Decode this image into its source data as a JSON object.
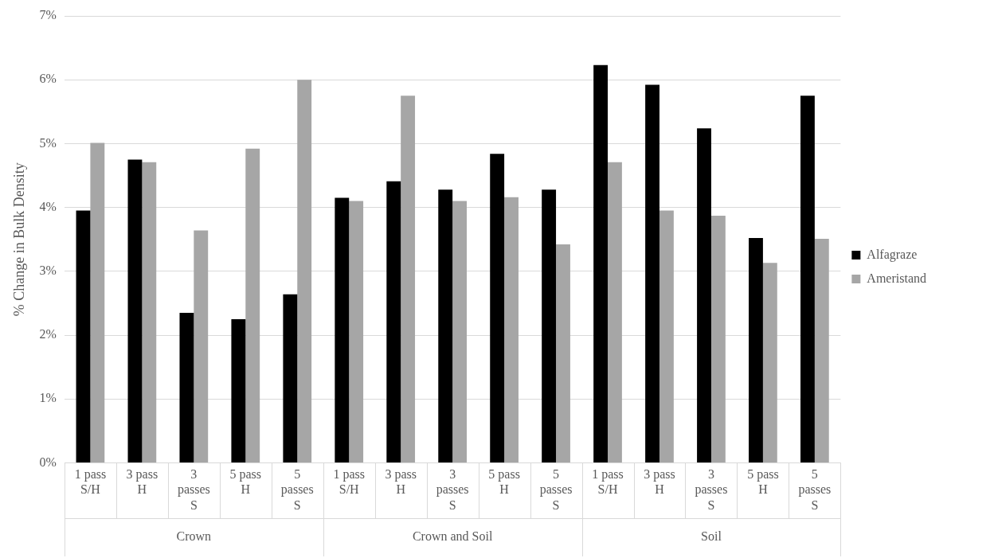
{
  "chart_data": {
    "type": "bar",
    "ylabel": "% Change in Bulk Density",
    "categories": [
      "1 pass S/H",
      "3 pass H",
      "3 passes S",
      "5 pass H",
      "5 passes S",
      "1 pass S/H",
      "3 pass H",
      "3 passes S",
      "5 pass H",
      "5 passes S",
      "1 pass S/H",
      "3 pass H",
      "3 passes S",
      "5 pass H",
      "5 passes S"
    ],
    "series": [
      {
        "name": "Alfagraze",
        "color": "#000000",
        "values": [
          3.95,
          4.75,
          2.35,
          2.25,
          2.64,
          4.15,
          4.41,
          4.28,
          4.84,
          4.28,
          6.23,
          5.92,
          5.24,
          3.52,
          5.75
        ]
      },
      {
        "name": "Ameristand",
        "color": "#a6a6a6",
        "values": [
          5.01,
          4.71,
          3.64,
          4.92,
          6.0,
          4.1,
          5.75,
          4.1,
          4.16,
          3.42,
          4.71,
          3.95,
          3.87,
          3.13,
          3.51
        ]
      }
    ],
    "annotations": [
      "Crown",
      "Crown and Soil",
      "Soil"
    ],
    "ylim": [
      0,
      7
    ],
    "yticks": [
      {
        "value": 0,
        "label": "0%"
      },
      {
        "value": 1,
        "label": "1%"
      },
      {
        "value": 2,
        "label": "2%"
      },
      {
        "value": 3,
        "label": "3%"
      },
      {
        "value": 4,
        "label": "4%"
      },
      {
        "value": 5,
        "label": "5%"
      },
      {
        "value": 6,
        "label": "6%"
      },
      {
        "value": 7,
        "label": "7%"
      }
    ],
    "grid": "y",
    "legend": "right"
  }
}
